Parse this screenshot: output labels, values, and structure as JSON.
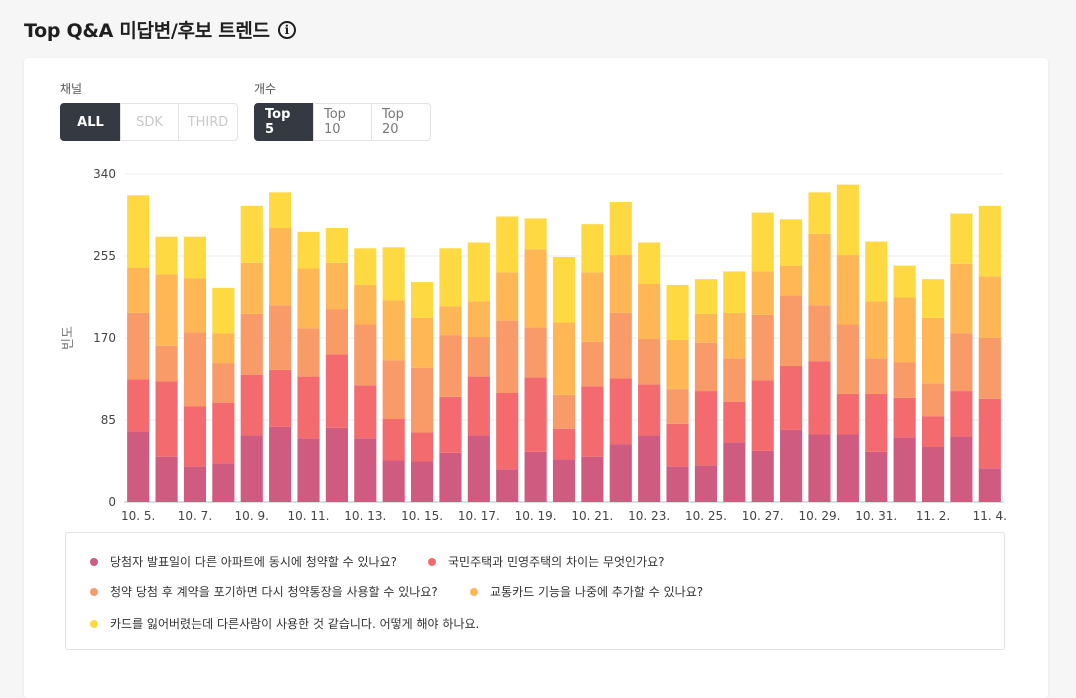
{
  "page": {
    "title": "Top Q&A 미답변/후보 트렌드",
    "info_glyph": "i"
  },
  "filters": {
    "channel": {
      "label": "채널",
      "options": [
        {
          "label": "ALL",
          "state": "active"
        },
        {
          "label": "SDK",
          "state": "disabled"
        },
        {
          "label": "THIRD",
          "state": "disabled"
        }
      ]
    },
    "count": {
      "label": "개수",
      "options": [
        {
          "label": "Top 5",
          "state": "active"
        },
        {
          "label": "Top 10",
          "state": "normal"
        },
        {
          "label": "Top 20",
          "state": "normal"
        }
      ]
    }
  },
  "chart_data": {
    "type": "bar",
    "stacked": true,
    "ylabel": "빈도",
    "ylim": [
      0,
      340
    ],
    "yticks": [
      0,
      85,
      170,
      255,
      340
    ],
    "grid": true,
    "categories": [
      "10. 5.",
      "10. 6.",
      "10. 7.",
      "10. 8.",
      "10. 9.",
      "10. 10.",
      "10. 11.",
      "10. 12.",
      "10. 13.",
      "10. 14.",
      "10. 15.",
      "10. 16.",
      "10. 17.",
      "10. 18.",
      "10. 19.",
      "10. 20.",
      "10. 21.",
      "10. 22.",
      "10. 23.",
      "10. 24.",
      "10. 25.",
      "10. 26.",
      "10. 27.",
      "10. 28.",
      "10. 29.",
      "10. 30.",
      "10. 31.",
      "11. 1.",
      "11. 2.",
      "11. 3.",
      "11. 4."
    ],
    "xtick_labels": [
      "10. 5.",
      "10. 7.",
      "10. 9.",
      "10. 11.",
      "10. 13.",
      "10. 15.",
      "10. 17.",
      "10. 19.",
      "10. 21.",
      "10. 23.",
      "10. 25.",
      "10. 27.",
      "10. 29.",
      "10. 31.",
      "11. 2.",
      "11. 4."
    ],
    "series": [
      {
        "name": "당첨자 발표일이 다른 아파트에 동시에 청약할 수 있나요?",
        "color": "#d05b80",
        "values": [
          73,
          47,
          37,
          40,
          69,
          78,
          66,
          77,
          66,
          43,
          42,
          51,
          69,
          34,
          52,
          44,
          47,
          60,
          69,
          37,
          38,
          62,
          53,
          75,
          70,
          70,
          52,
          67,
          57,
          68,
          35
        ]
      },
      {
        "name": "국민주택과 민영주택의 차이는 무엇인가요?",
        "color": "#f46b6f",
        "values": [
          54,
          78,
          62,
          63,
          63,
          59,
          64,
          76,
          55,
          43,
          30,
          58,
          61,
          79,
          77,
          32,
          73,
          68,
          53,
          44,
          77,
          42,
          73,
          66,
          76,
          42,
          60,
          41,
          32,
          47,
          72
        ]
      },
      {
        "name": "청약 당첨 후 계약을 포기하면 다시 청약통장을 사용할 수 있나요?",
        "color": "#f99a69",
        "values": [
          69,
          37,
          77,
          41,
          63,
          67,
          50,
          47,
          63,
          61,
          67,
          64,
          41,
          75,
          52,
          35,
          46,
          68,
          47,
          36,
          50,
          45,
          68,
          73,
          58,
          72,
          37,
          37,
          34,
          60,
          63
        ]
      },
      {
        "name": "교통카드 기능을 나중에 추가할 수 있나요?",
        "color": "#ffb755",
        "values": [
          47,
          74,
          56,
          31,
          53,
          80,
          62,
          48,
          41,
          62,
          52,
          30,
          37,
          50,
          81,
          75,
          72,
          60,
          57,
          51,
          30,
          47,
          45,
          31,
          74,
          72,
          59,
          67,
          68,
          72,
          64
        ]
      },
      {
        "name": "카드를 잃어버렸는데 다른사람이 사용한 것 같습니다. 어떻게 해야 하나요.",
        "color": "#ffd942",
        "values": [
          75,
          39,
          43,
          47,
          59,
          37,
          38,
          36,
          38,
          55,
          37,
          60,
          61,
          58,
          32,
          68,
          50,
          55,
          43,
          57,
          36,
          43,
          61,
          48,
          43,
          73,
          62,
          33,
          40,
          52,
          73
        ]
      }
    ],
    "legend_position": "bottom"
  }
}
